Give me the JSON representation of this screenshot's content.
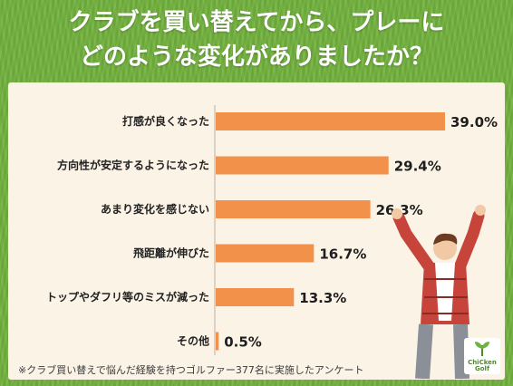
{
  "title_line1": "クラブを買い替えてから、プレーに",
  "title_line2": "どのような変化がありましたか？",
  "footnote": "※クラブ買い替えで悩んだ経験を持つゴルファー377名に実施したアンケート",
  "logo_text": "ChiCken Golf",
  "colors": {
    "bar": "#f2914a",
    "background": "#72b23d",
    "panel": "#fbf3e6"
  },
  "chart_data": {
    "type": "bar",
    "orientation": "horizontal",
    "title": "",
    "categories": [
      "打感が良くなった",
      "方向性が安定するようになった",
      "あまり変化を感じない",
      "飛距離が伸びた",
      "トップやダフリ等のミスが減った",
      "その他"
    ],
    "values": [
      39.0,
      29.4,
      26.3,
      16.7,
      13.3,
      0.5
    ],
    "value_labels": [
      "39.0%",
      "29.4%",
      "26.3%",
      "16.7%",
      "13.3%",
      "0.5%"
    ],
    "unit": "%",
    "xlim": [
      0,
      39.0
    ]
  }
}
